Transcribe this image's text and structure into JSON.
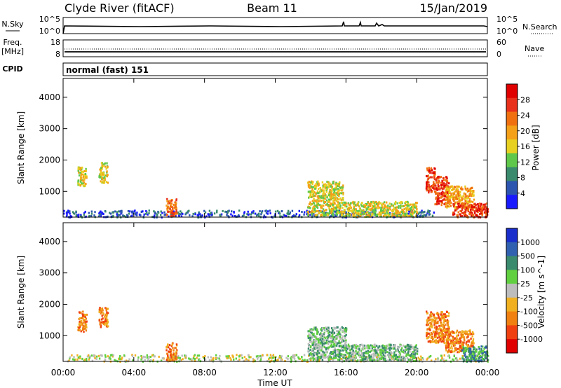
{
  "header": {
    "station": "Clyde River (fitACF)",
    "beam": "Beam 11",
    "date": "15/Jan/2019"
  },
  "strip_nsky": {
    "left_label": "N.Sky",
    "right_label": "N.Search",
    "left_ticks": [
      "10^5",
      "10^0"
    ],
    "right_ticks": [
      "10^5",
      "10^0"
    ]
  },
  "strip_freq": {
    "left_label_1": "Freq.",
    "left_label_2": "[MHz]",
    "right_label": "Nave",
    "left_ticks": [
      "18",
      "8"
    ],
    "right_ticks": [
      "60",
      "0"
    ]
  },
  "strip_cpid": {
    "label": "CPID",
    "value": "normal (fast) 151"
  },
  "colors": {
    "power_scale": [
      "#1a1aff",
      "#2c55b0",
      "#3a8a6e",
      "#5fc84a",
      "#e8d020",
      "#f4a018",
      "#f07010",
      "#e8301a",
      "#e00000"
    ],
    "velocity_scale": [
      "#1a2ecc",
      "#3060b0",
      "#3a8a6e",
      "#60d040",
      "#bdbdbd",
      "#f0b020",
      "#f08010",
      "#f04010",
      "#e00000"
    ]
  },
  "chart_data": [
    {
      "type": "heatmap",
      "title": "",
      "quantity": "Power",
      "xlabel": "",
      "ylabel": "Slant Range [km]",
      "xlim": [
        "00:00",
        "24:00"
      ],
      "ylim": [
        180,
        4600
      ],
      "y_ticks": [
        "1000",
        "2000",
        "3000",
        "4000"
      ],
      "x_ticks": [
        "00:00",
        "04:00",
        "08:00",
        "12:00",
        "16:00",
        "20:00",
        "00:00"
      ],
      "colorbar": {
        "label": "Power [dB]",
        "range": [
          0,
          32
        ],
        "ticks": [
          "4",
          "8",
          "12",
          "16",
          "20",
          "24",
          "28"
        ]
      },
      "features": [
        {
          "t": [
            0.8,
            1.3
          ],
          "range": [
            1150,
            1800
          ],
          "value": 15
        },
        {
          "t": [
            2.0,
            2.5
          ],
          "range": [
            1300,
            1950
          ],
          "value": 16
        },
        {
          "t": [
            0.0,
            21.0
          ],
          "range": [
            200,
            420
          ],
          "value": 6
        },
        {
          "t": [
            5.8,
            6.4
          ],
          "range": [
            220,
            800
          ],
          "value": 22
        },
        {
          "t": [
            13.8,
            15.8
          ],
          "range": [
            250,
            1350
          ],
          "value": 17
        },
        {
          "t": [
            15.8,
            20.0
          ],
          "range": [
            220,
            700
          ],
          "value": 16
        },
        {
          "t": [
            20.5,
            21.0
          ],
          "range": [
            1000,
            1800
          ],
          "value": 27
        },
        {
          "t": [
            21.0,
            21.8
          ],
          "range": [
            600,
            1500
          ],
          "value": 26
        },
        {
          "t": [
            21.6,
            23.2
          ],
          "range": [
            500,
            1200
          ],
          "value": 20
        },
        {
          "t": [
            22.0,
            24.0
          ],
          "range": [
            200,
            650
          ],
          "value": 25
        }
      ]
    },
    {
      "type": "heatmap",
      "title": "",
      "quantity": "Velocity",
      "xlabel": "Time UT",
      "ylabel": "Slant Range [km]",
      "xlim": [
        "00:00",
        "24:00"
      ],
      "ylim": [
        180,
        4600
      ],
      "y_ticks": [
        "1000",
        "2000",
        "3000",
        "4000"
      ],
      "x_ticks": [
        "00:00",
        "04:00",
        "08:00",
        "12:00",
        "16:00",
        "20:00",
        "00:00"
      ],
      "colorbar": {
        "label": "Velocity [m s^-1]",
        "ticks": [
          "1000",
          "500",
          "100",
          "25",
          "-25",
          "-100",
          "-500",
          "-1000"
        ]
      },
      "features": [
        {
          "t": [
            0.8,
            1.3
          ],
          "range": [
            1150,
            1800
          ],
          "value": -150
        },
        {
          "t": [
            2.0,
            2.5
          ],
          "range": [
            1300,
            1950
          ],
          "value": -200
        },
        {
          "t": [
            0.0,
            24.0
          ],
          "range": [
            200,
            420
          ],
          "value": 20
        },
        {
          "t": [
            5.8,
            6.4
          ],
          "range": [
            220,
            800
          ],
          "value": -120
        },
        {
          "t": [
            13.8,
            16.0
          ],
          "range": [
            250,
            1300
          ],
          "value": 30
        },
        {
          "t": [
            16.0,
            20.0
          ],
          "range": [
            220,
            750
          ],
          "value": 80
        },
        {
          "t": [
            20.5,
            21.8
          ],
          "range": [
            800,
            1800
          ],
          "value": -250
        },
        {
          "t": [
            21.6,
            23.2
          ],
          "range": [
            500,
            1200
          ],
          "value": -150
        },
        {
          "t": [
            22.5,
            24.0
          ],
          "range": [
            200,
            700
          ],
          "value": 150
        }
      ]
    }
  ]
}
